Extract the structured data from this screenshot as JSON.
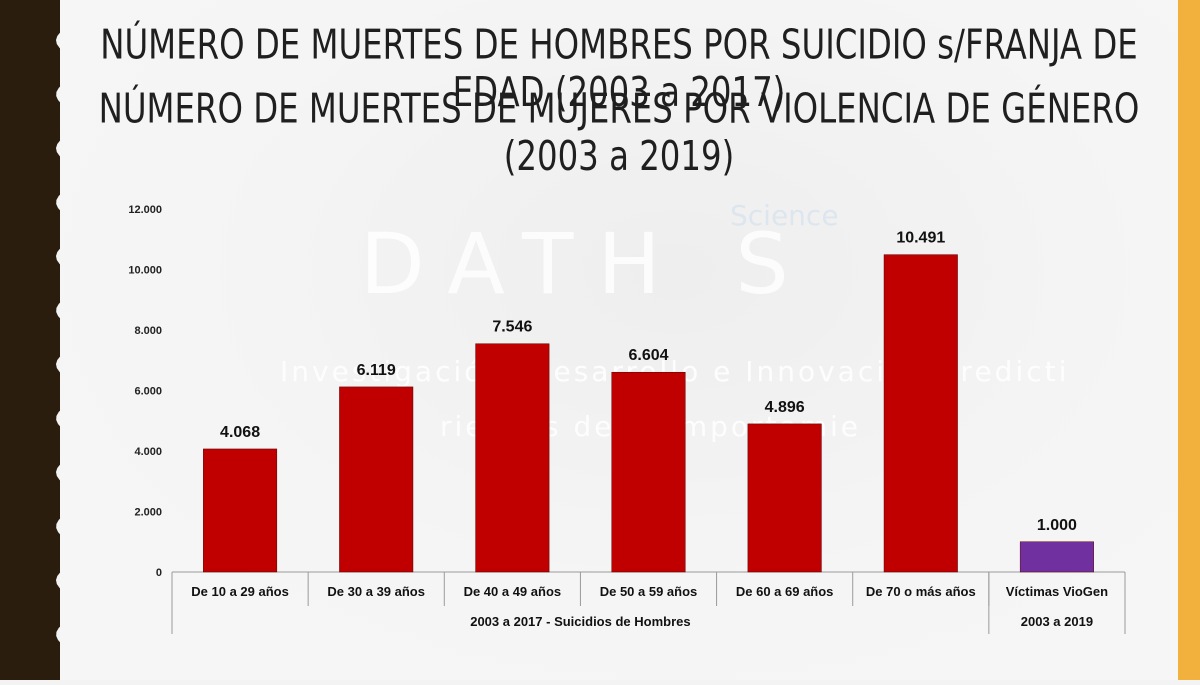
{
  "titles": {
    "line1": "NÚMERO DE MUERTES DE HOMBRES POR SUICIDIO s/FRANJA DE EDAD (2003 a 2017)",
    "line2": "NÚMERO DE MUERTES DE MUJERES POR VIOLENCIA DE GÉNERO (2003 a 2019)"
  },
  "watermark": {
    "brand": "DATH S",
    "science": "Science",
    "tagline1": "Investigación, Desarrollo e Innovación predicti",
    "tagline2": "riesgos del Comportamie"
  },
  "colors": {
    "suicide_bar": "#c00000",
    "viogen_bar": "#7030a0",
    "left_edge": "#2b1d0e",
    "right_edge": "#f2b03c"
  },
  "chart_data": {
    "type": "bar",
    "categories": [
      "De 10 a 29 años",
      "De 30 a 39 años",
      "De 40 a 49 años",
      "De 50 a 59 años",
      "De 60 a 69 años",
      "De 70 o más años",
      "Víctimas VioGen"
    ],
    "values": [
      4068,
      6119,
      7546,
      6604,
      4896,
      10491,
      1000
    ],
    "value_labels": [
      "4.068",
      "6.119",
      "7.546",
      "6.604",
      "4.896",
      "10.491",
      "1.000"
    ],
    "bar_colors": [
      "#c00000",
      "#c00000",
      "#c00000",
      "#c00000",
      "#c00000",
      "#c00000",
      "#7030a0"
    ],
    "groups": [
      {
        "label": "2003 a 2017 - Suicidios de Hombres",
        "count": 6
      },
      {
        "label": "2003 a 2019",
        "count": 1
      }
    ],
    "yticks": [
      0,
      2000,
      4000,
      6000,
      8000,
      10000,
      12000
    ],
    "ytick_labels": [
      "0",
      "2.000",
      "4.000",
      "6.000",
      "8.000",
      "10.000",
      "12.000"
    ],
    "ylim": [
      0,
      12000
    ],
    "grid": false,
    "legend": "none"
  }
}
